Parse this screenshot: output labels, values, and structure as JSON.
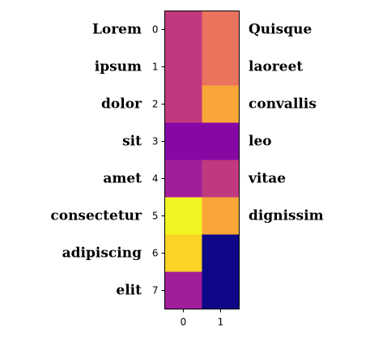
{
  "chart_data": {
    "type": "heatmap",
    "title": "",
    "xlabel": "",
    "ylabel": "",
    "colormap": "plasma",
    "x_ticks": [
      "0",
      "1"
    ],
    "y_ticks": [
      "0",
      "1",
      "2",
      "3",
      "4",
      "5",
      "6",
      "7"
    ],
    "row_labels_left": [
      "Lorem",
      "ipsum",
      "dolor",
      "sit",
      "amet",
      "consectetur",
      "adipiscing",
      "elit"
    ],
    "row_labels_right": [
      "Quisque",
      "laoreet",
      "convallis",
      "leo",
      "vitae",
      "dignissim",
      "",
      ""
    ],
    "values": [
      [
        0.45,
        0.68
      ],
      [
        0.45,
        0.68
      ],
      [
        0.45,
        0.8
      ],
      [
        0.2,
        0.2
      ],
      [
        0.35,
        0.45
      ],
      [
        0.98,
        0.8
      ],
      [
        0.9,
        0.0
      ],
      [
        0.35,
        0.0
      ]
    ],
    "cell_colors": [
      [
        "#c0397f",
        "#ea735e"
      ],
      [
        "#c0397f",
        "#ea735e"
      ],
      [
        "#c0397f",
        "#faa537"
      ],
      [
        "#8707a5",
        "#8707a5"
      ],
      [
        "#a21d9a",
        "#c0397f"
      ],
      [
        "#eff621",
        "#faa537"
      ],
      [
        "#fbd324",
        "#0e0787"
      ],
      [
        "#a21d9a",
        "#0e0787"
      ]
    ]
  }
}
